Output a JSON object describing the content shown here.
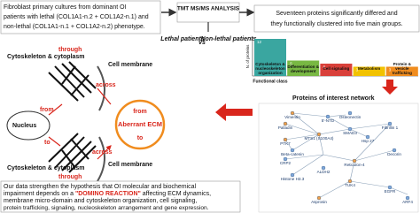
{
  "intro": {
    "lines": [
      "Fibroblast primary cultures from dominant OI",
      "patients with lethal (COL1A1-n.2 + COL1A2-n.1) and",
      "non-lethal (COL1A1-n.1 + COL1A2-n.2) phenotype."
    ]
  },
  "analysis": {
    "title": "TMT MS/MS ANALYSIS",
    "lethal": "Lethal patients",
    "vs": "vs",
    "nonlethal": "Non-lethal patients"
  },
  "summary": {
    "lines": [
      "Seventeen proteins significantly differed and",
      "they functionally clustered into five main groups."
    ]
  },
  "functional_classes": {
    "y_label": "N. of proteins",
    "x_label": "Functional class",
    "classes": [
      {
        "name": "Cytoskeleton & nucleoskeleton organization",
        "value": 12,
        "color": "#3aa6a0"
      },
      {
        "name": "Differentiation & development",
        "value": 5,
        "color": "#78b843"
      },
      {
        "name": "Cell signaling",
        "value": 4,
        "color": "#d9403a"
      },
      {
        "name": "Metabolism",
        "value": 3,
        "color": "#f2c200"
      },
      {
        "name": "Protein & vesicle trafficking",
        "value": 3,
        "color": "#f08c1e"
      }
    ]
  },
  "network": {
    "title": "Proteins of interest network",
    "nodes": [
      "Vimentin",
      "5'-NTD",
      "Osteonectin",
      "Palladin",
      "SMAD3",
      "Fibrillin 1",
      "PTK7",
      "CRP2",
      "Beta-catenin",
      "MTS1 (S100A4)",
      "Hsp 27",
      "Histone H3.3",
      "Reticulon-4",
      "Decorin",
      "ALDH2",
      "TUK4",
      "EGFR",
      "ARF4",
      "Asprosin"
    ]
  },
  "diagram": {
    "cyto_top": "Cytoskeleton & cytoplasm",
    "through_top": "through",
    "membrane_top": "Cell membrane",
    "across_top": "across",
    "from_left": "from",
    "nucleus": "Nucleus",
    "to_left": "to",
    "ecm_from": "from",
    "ecm": "Aberrant ECM",
    "ecm_to": "to",
    "across_bottom": "across",
    "membrane_bottom": "Cell membrane",
    "cyto_bottom": "Cytoskeleton & cytoplasm",
    "through_bottom": "through"
  },
  "conclusion": {
    "line1": "Our data strengthen the hypothesis that OI molecular and biochemical",
    "line2a": "impairment depends on a ",
    "line2b": "\"DOMINO REACTION\"",
    "line2c": " affecting ECM dynamics,",
    "line3": "membrane micro-domain and cytoskeleton organization, cell signaling,",
    "line4": "protein trafficking, signaling, nucleoskeleton arrangement and gene expression."
  }
}
